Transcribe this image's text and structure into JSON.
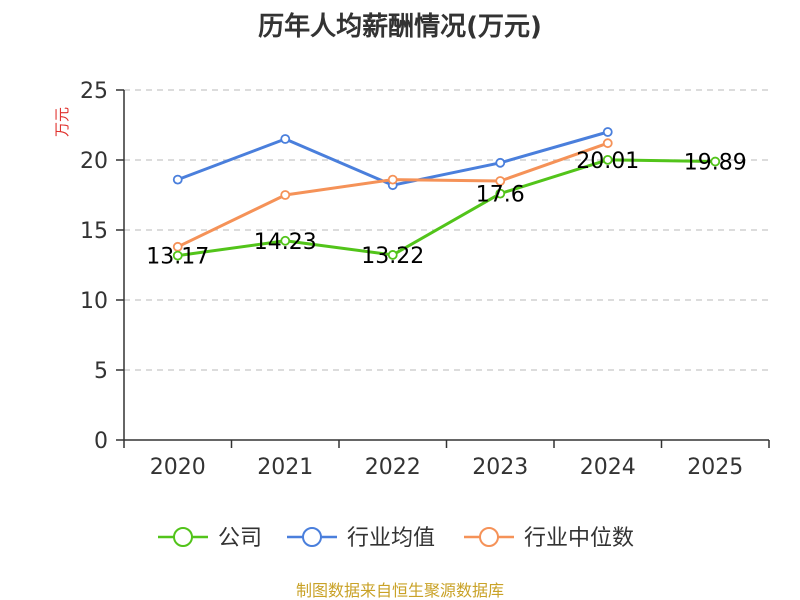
{
  "chart_data": {
    "type": "line",
    "title": "历年人均薪酬情况(万元)",
    "ylabel": "万元",
    "xlabel": "",
    "categories": [
      "2020",
      "2021",
      "2022",
      "2023",
      "2024",
      "2025"
    ],
    "ylim": [
      0,
      25
    ],
    "yticks": [
      0,
      5,
      10,
      15,
      20,
      25
    ],
    "grid": true,
    "legend_position": "bottom",
    "series": [
      {
        "name": "公司",
        "color": "#52c41a",
        "values": [
          13.17,
          14.23,
          13.22,
          17.6,
          20.01,
          19.89
        ],
        "labels": [
          "13.17",
          "14.23",
          "13.22",
          "17.6",
          "20.01",
          "19.89"
        ]
      },
      {
        "name": "行业均值",
        "color": "#4a7fdc",
        "values": [
          18.6,
          21.5,
          18.2,
          19.8,
          22.0,
          null
        ]
      },
      {
        "name": "行业中位数",
        "color": "#f59258",
        "values": [
          13.8,
          17.5,
          18.6,
          18.5,
          21.2,
          null
        ]
      }
    ]
  },
  "source": "制图数据来自恒生聚源数据库"
}
